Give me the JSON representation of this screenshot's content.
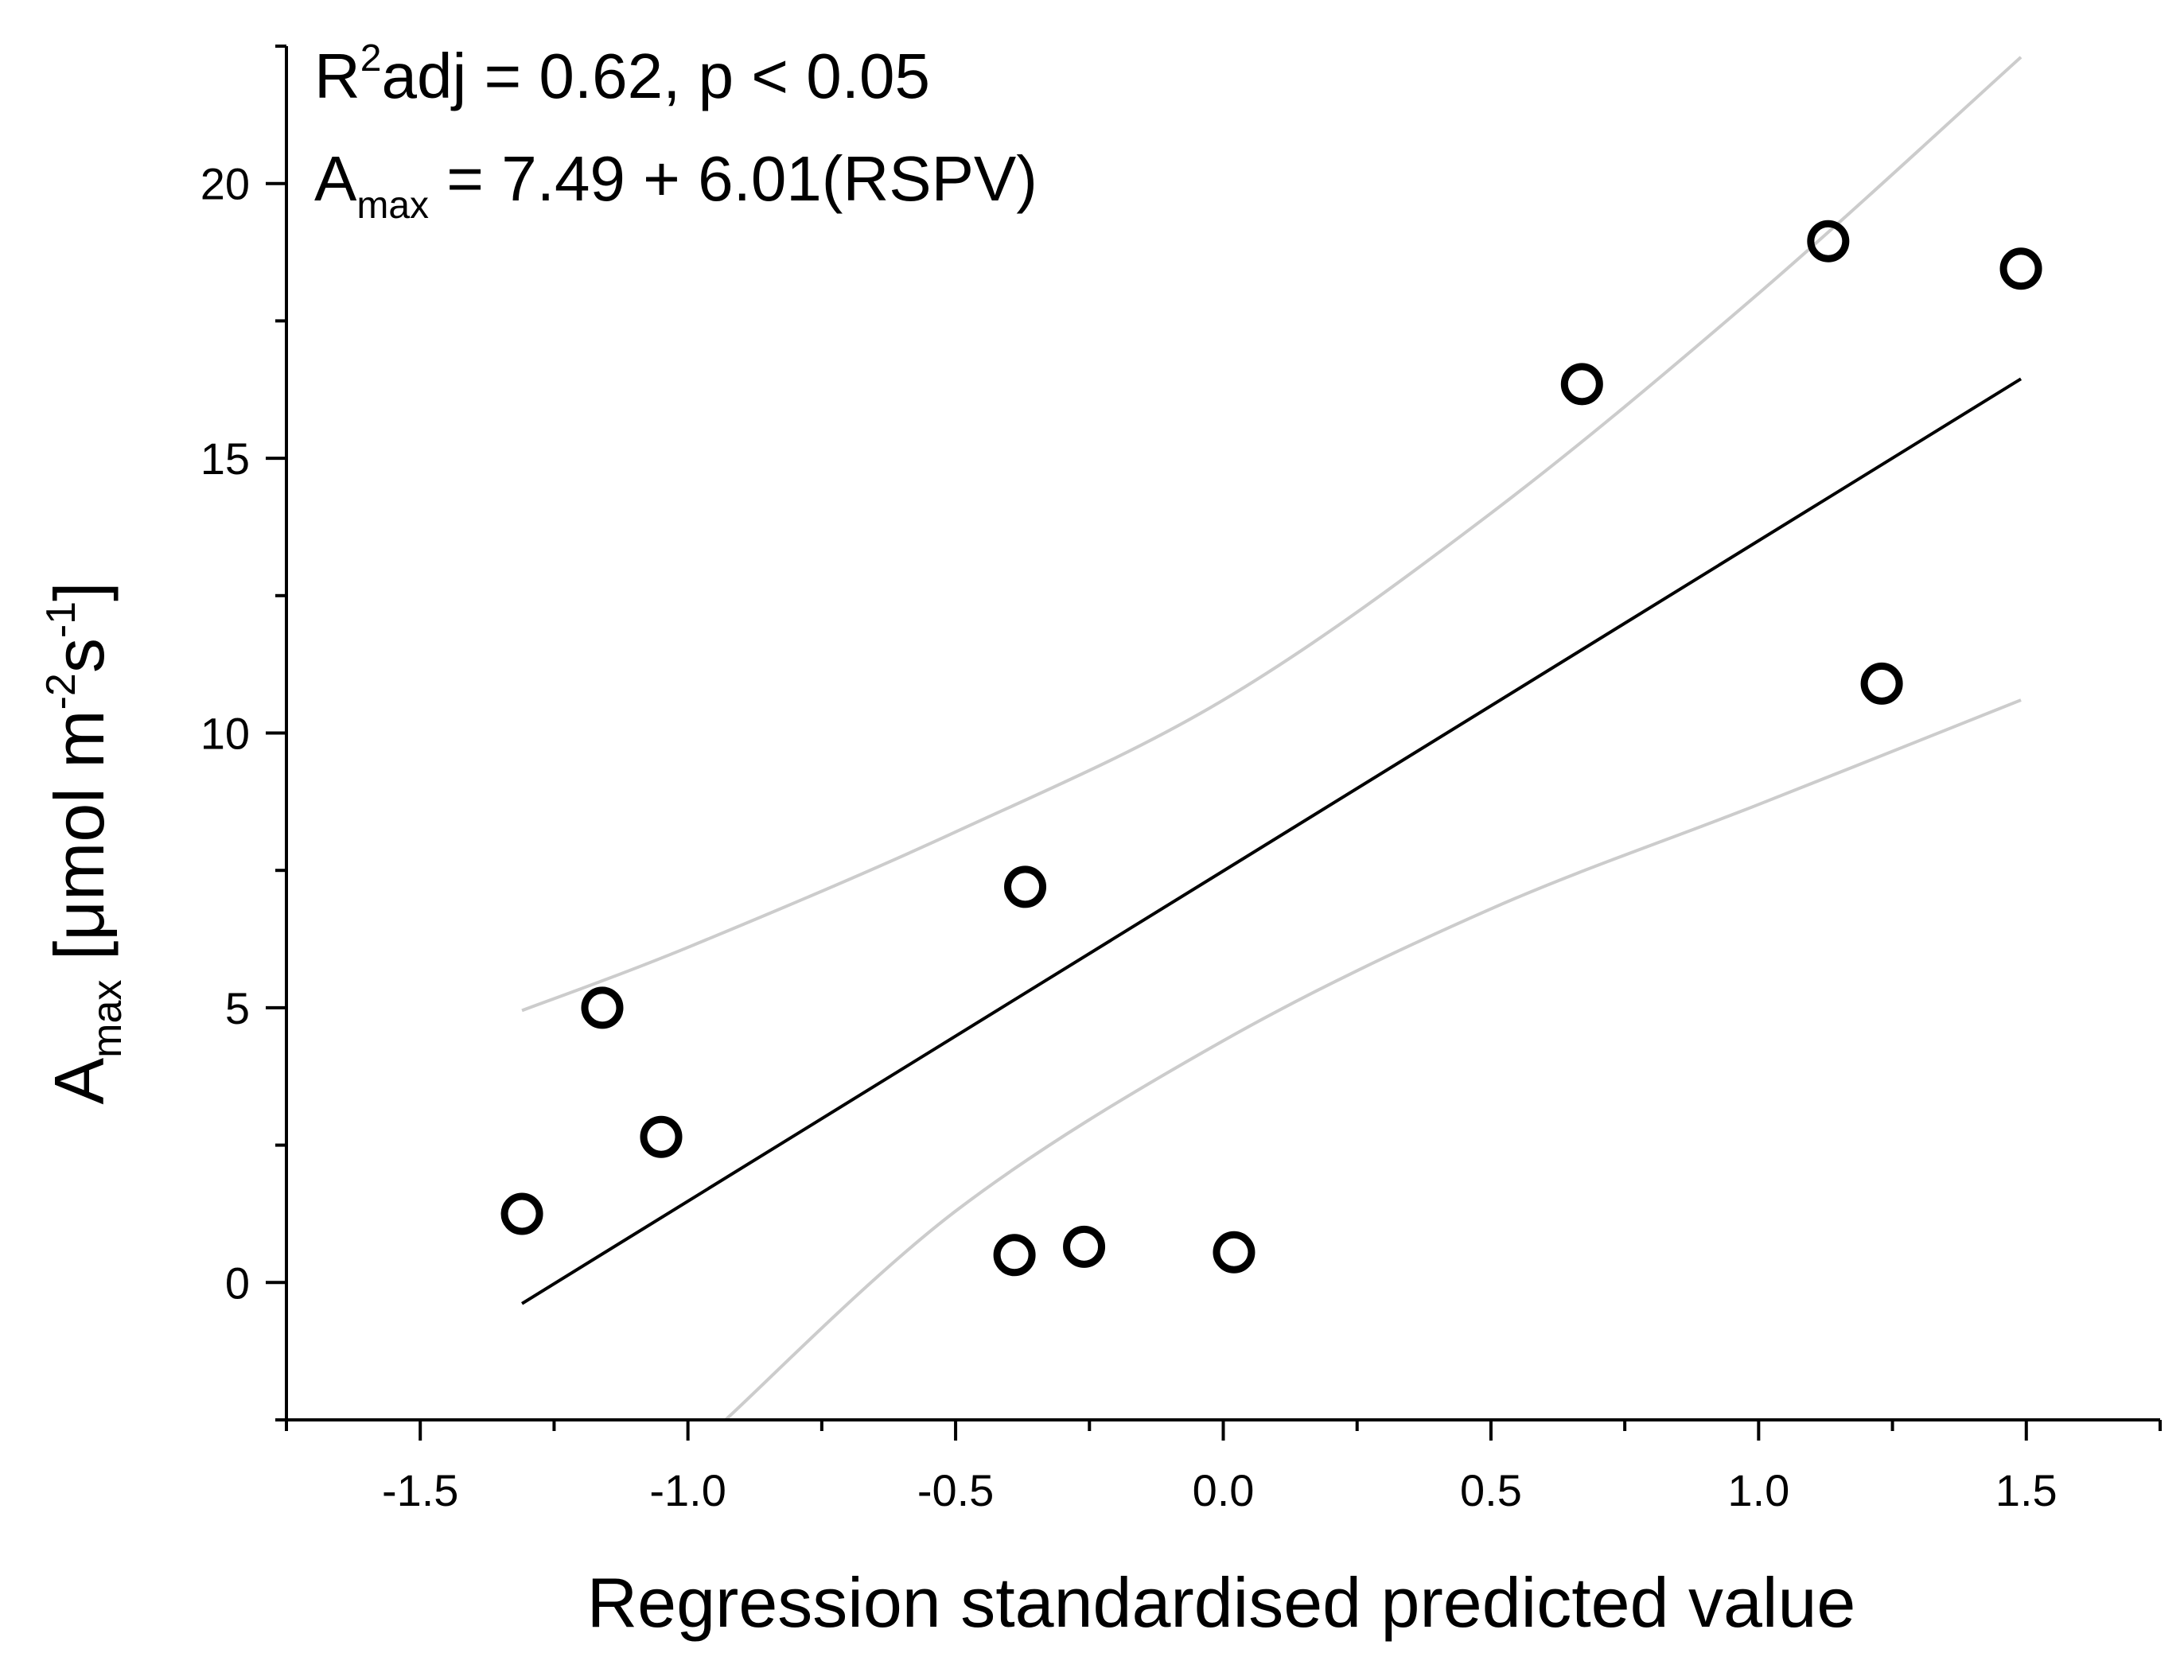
{
  "chart_data": {
    "type": "scatter",
    "title": "",
    "xlabel": "Regression standardised predicted value",
    "ylabel": {
      "main": "A",
      "sub": "max",
      "units_pre": " [μmol m",
      "sup1": "-2",
      "units_mid": "s",
      "sup2": "-1",
      "units_post": "]"
    },
    "xlim": [
      -1.75,
      1.75
    ],
    "ylim": [
      -2.5,
      22.5
    ],
    "x_ticks": [
      -1.5,
      -1.0,
      -0.5,
      0.0,
      0.5,
      1.0,
      1.5
    ],
    "x_tick_labels": [
      "-1.5",
      "-1.0",
      "-0.5",
      "0.0",
      "0.5",
      "1.0",
      "1.5"
    ],
    "y_ticks": [
      0,
      5,
      10,
      15,
      20
    ],
    "y_tick_labels": [
      "0",
      "5",
      "10",
      "15",
      "20"
    ],
    "points": [
      {
        "x": -1.31,
        "y": 1.25
      },
      {
        "x": -1.16,
        "y": 5.0
      },
      {
        "x": -1.05,
        "y": 2.65
      },
      {
        "x": -0.39,
        "y": 0.5
      },
      {
        "x": -0.37,
        "y": 7.2
      },
      {
        "x": -0.26,
        "y": 0.65
      },
      {
        "x": 0.02,
        "y": 0.55
      },
      {
        "x": 0.67,
        "y": 16.35
      },
      {
        "x": 1.13,
        "y": 18.95
      },
      {
        "x": 1.23,
        "y": 10.9
      },
      {
        "x": 1.49,
        "y": 18.45
      }
    ],
    "fit_line": {
      "intercept": 7.49,
      "slope": 6.01,
      "x_range": [
        -1.31,
        1.49
      ]
    },
    "confidence_upper": [
      {
        "x": -1.31,
        "y": 4.95
      },
      {
        "x": -1.0,
        "y": 6.1
      },
      {
        "x": -0.5,
        "y": 8.2
      },
      {
        "x": 0.0,
        "y": 10.6
      },
      {
        "x": 0.5,
        "y": 14.0
      },
      {
        "x": 1.0,
        "y": 18.0
      },
      {
        "x": 1.49,
        "y": 22.3
      }
    ],
    "confidence_lower": [
      {
        "x": -0.93,
        "y": -2.5
      },
      {
        "x": -0.5,
        "y": 1.3
      },
      {
        "x": 0.0,
        "y": 4.4
      },
      {
        "x": 0.5,
        "y": 6.8
      },
      {
        "x": 1.0,
        "y": 8.7
      },
      {
        "x": 1.49,
        "y": 10.6
      }
    ],
    "annotations": {
      "line1_main": "R",
      "line1_sup": "2",
      "line1_rest": "adj = 0.62, p < 0.05",
      "line2_main": "A",
      "line2_sub": "max",
      "line2_rest": " = 7.49 + 6.01(RSPV)"
    },
    "colors": {
      "points": "#000000",
      "fit": "#000000",
      "confidence": "#cccccc",
      "axes": "#000000"
    }
  }
}
